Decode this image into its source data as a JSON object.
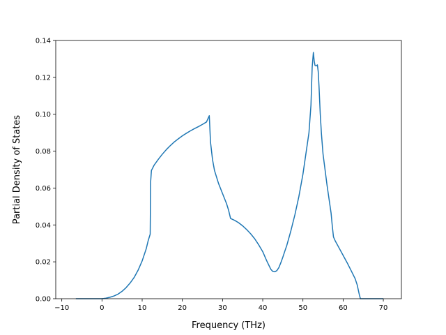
{
  "chart_data": {
    "type": "line",
    "title": "",
    "xlabel": "Frequency (THz)",
    "ylabel": "Partial Density of States",
    "xlim": [
      -11.5,
      74.5
    ],
    "ylim": [
      0,
      0.14
    ],
    "xticks": [
      -10,
      0,
      10,
      20,
      30,
      40,
      50,
      60,
      70
    ],
    "yticks": [
      0.0,
      0.02,
      0.04,
      0.06,
      0.08,
      0.1,
      0.12,
      0.14
    ],
    "xtick_labels": [
      "−10",
      "0",
      "10",
      "20",
      "30",
      "40",
      "50",
      "60",
      "70"
    ],
    "ytick_labels": [
      "0.00",
      "0.02",
      "0.04",
      "0.06",
      "0.08",
      "0.10",
      "0.12",
      "0.14"
    ],
    "grid": false,
    "legend": false,
    "line_color": "#1f77b4",
    "series": [
      {
        "x": [
          -6.5,
          -2,
          0,
          1,
          2,
          3,
          4,
          5,
          6,
          7,
          8,
          9,
          10,
          11,
          11.5,
          12,
          12.1,
          12.3,
          13,
          14,
          15,
          16,
          17,
          18,
          19,
          20,
          21,
          22,
          23,
          24,
          25,
          26,
          26.7,
          27,
          27.5,
          28,
          29,
          30,
          31,
          31.5,
          32,
          33,
          34,
          35,
          36,
          37,
          38,
          39,
          40,
          41,
          42,
          42.5,
          43,
          43.5,
          44,
          44.5,
          45,
          45.5,
          46,
          47,
          48,
          49,
          50,
          51,
          51.5,
          52,
          52.3,
          52.6,
          52.8,
          53,
          53.3,
          53.6,
          53.8,
          54,
          54.3,
          54.6,
          55,
          56,
          57,
          57.3,
          57.6,
          58,
          59,
          60,
          61,
          62,
          63,
          63.5,
          64,
          64.3,
          65,
          70
        ],
        "y": [
          0.0,
          0.0,
          0.0,
          0.0003,
          0.0008,
          0.0015,
          0.0025,
          0.004,
          0.006,
          0.0085,
          0.0115,
          0.0155,
          0.0205,
          0.027,
          0.0315,
          0.035,
          0.063,
          0.0695,
          0.0725,
          0.0755,
          0.0783,
          0.0808,
          0.083,
          0.085,
          0.0867,
          0.0883,
          0.0897,
          0.091,
          0.0922,
          0.0933,
          0.0945,
          0.0958,
          0.0992,
          0.085,
          0.0755,
          0.0695,
          0.0625,
          0.057,
          0.0515,
          0.048,
          0.0435,
          0.0425,
          0.0412,
          0.0395,
          0.0375,
          0.0352,
          0.0325,
          0.0292,
          0.0255,
          0.0205,
          0.016,
          0.0148,
          0.0146,
          0.0152,
          0.0168,
          0.0195,
          0.0225,
          0.0258,
          0.029,
          0.0368,
          0.0455,
          0.0555,
          0.0675,
          0.0825,
          0.09,
          0.105,
          0.1255,
          0.1335,
          0.129,
          0.1265,
          0.1262,
          0.1268,
          0.1232,
          0.1152,
          0.1005,
          0.0895,
          0.0785,
          0.0615,
          0.0465,
          0.0395,
          0.0335,
          0.0315,
          0.0275,
          0.0235,
          0.0195,
          0.0152,
          0.0108,
          0.0075,
          0.0025,
          0.0,
          0.0,
          0.0
        ]
      }
    ]
  }
}
